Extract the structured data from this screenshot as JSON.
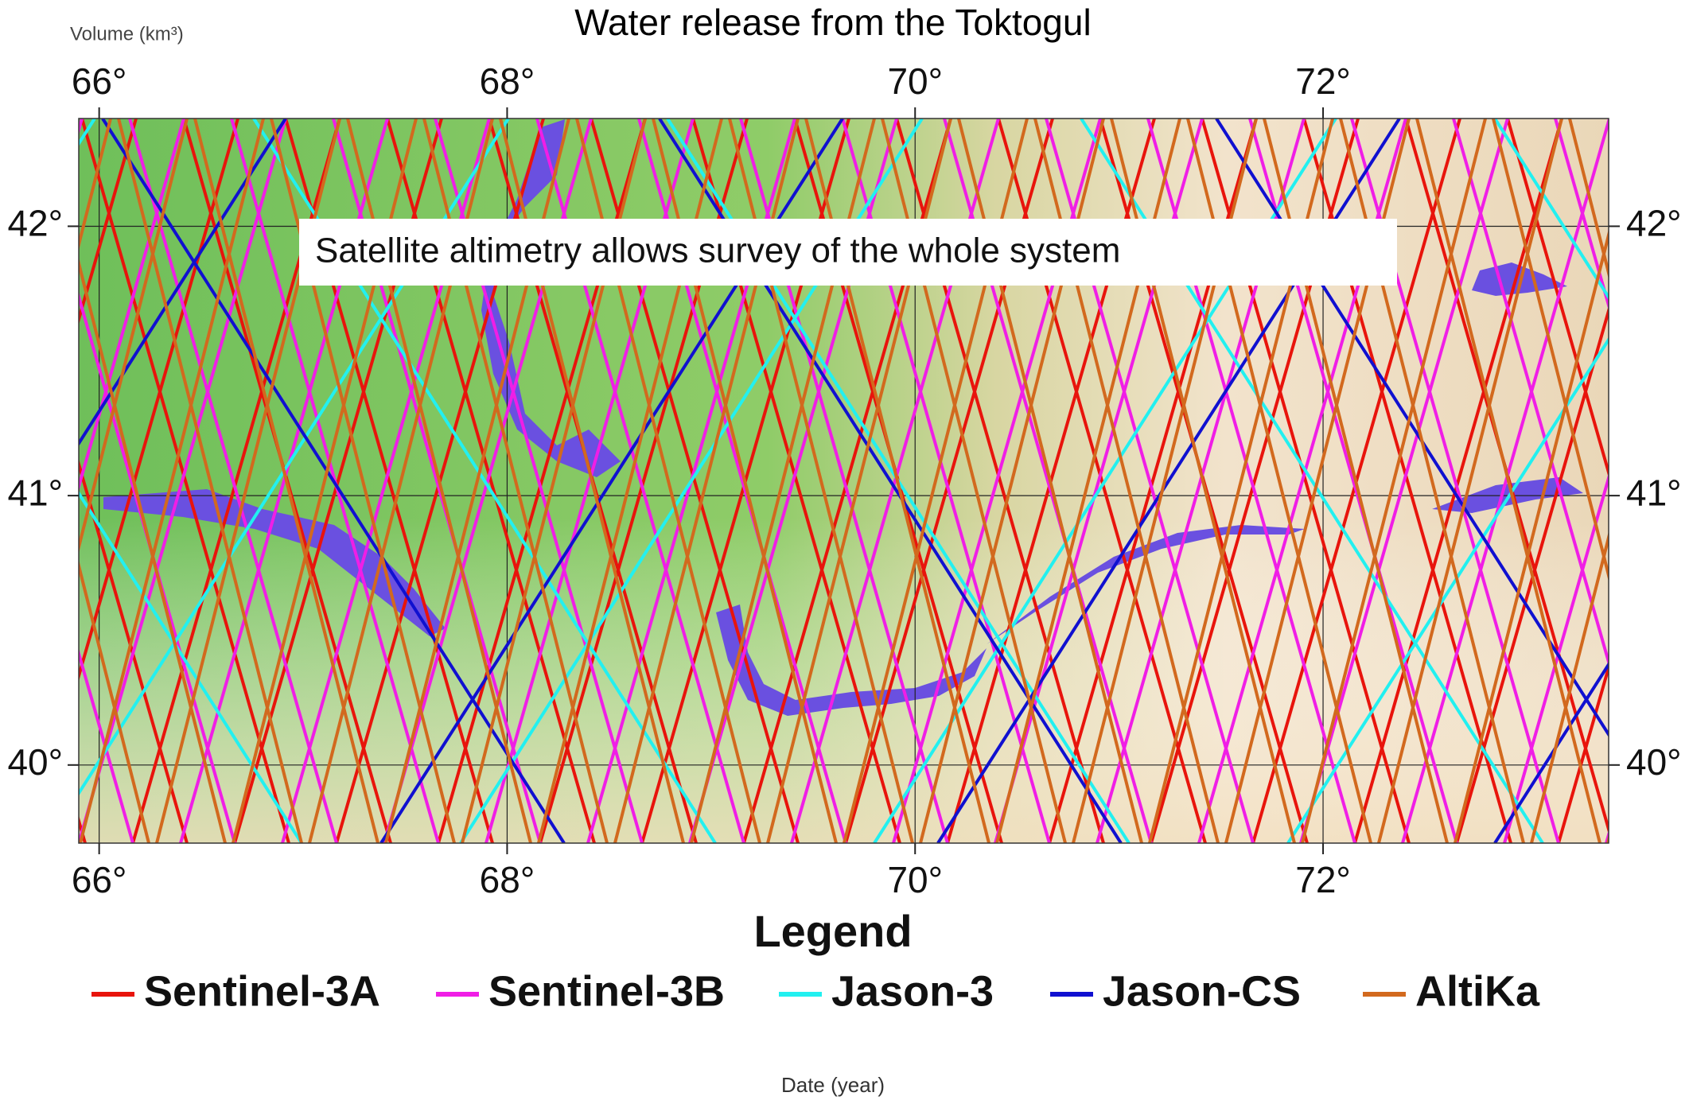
{
  "map": {
    "title": "Water release from the Toktogul",
    "y_axis_label": "Volume (km³)",
    "x_axis_label": "Date (year)",
    "annotation": "Satellite altimetry allows survey of the whole system",
    "lon_range": [
      65.9,
      73.4
    ],
    "lat_range": [
      39.71,
      42.4
    ],
    "lon_ticks": [
      {
        "value": 66,
        "label": "66°"
      },
      {
        "value": 68,
        "label": "68°"
      },
      {
        "value": 70,
        "label": "70°"
      },
      {
        "value": 72,
        "label": "72°"
      }
    ],
    "lat_ticks": [
      {
        "value": 40,
        "label": "40°"
      },
      {
        "value": 41,
        "label": "41°"
      },
      {
        "value": 42,
        "label": "42°"
      }
    ],
    "grid": true,
    "legend_title": "Legend",
    "tracks": [
      {
        "name": "Sentinel-3A",
        "color": "#e8140c"
      },
      {
        "name": "Sentinel-3B",
        "color": "#f01ee6"
      },
      {
        "name": "Jason-3",
        "color": "#22f0f0"
      },
      {
        "name": "Jason-CS",
        "color": "#1010d0"
      },
      {
        "name": "AltiKa",
        "color": "#d2691e"
      }
    ]
  }
}
